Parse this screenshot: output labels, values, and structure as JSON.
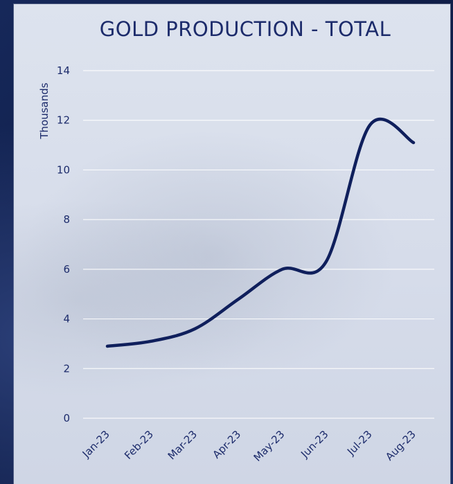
{
  "chart_data": {
    "type": "line",
    "title": "GOLD PRODUCTION - TOTAL",
    "xlabel": "",
    "ylabel": "Thousands",
    "categories": [
      "Jan-23",
      "Feb-23",
      "Mar-23",
      "Apr-23",
      "May-23",
      "Jun-23",
      "Jul-23",
      "Aug-23"
    ],
    "series": [
      {
        "values": [
          2.9,
          3.1,
          3.6,
          4.8,
          6.0,
          6.3,
          11.8,
          11.1
        ]
      }
    ],
    "ylim": [
      0,
      14
    ],
    "yticks": [
      "0",
      "2",
      "4",
      "6",
      "8",
      "10",
      "12",
      "14"
    ],
    "grid": true,
    "colors": {
      "line": "#0f1f5c",
      "text": "#1c2b6b",
      "grid": "#ffffff"
    }
  }
}
